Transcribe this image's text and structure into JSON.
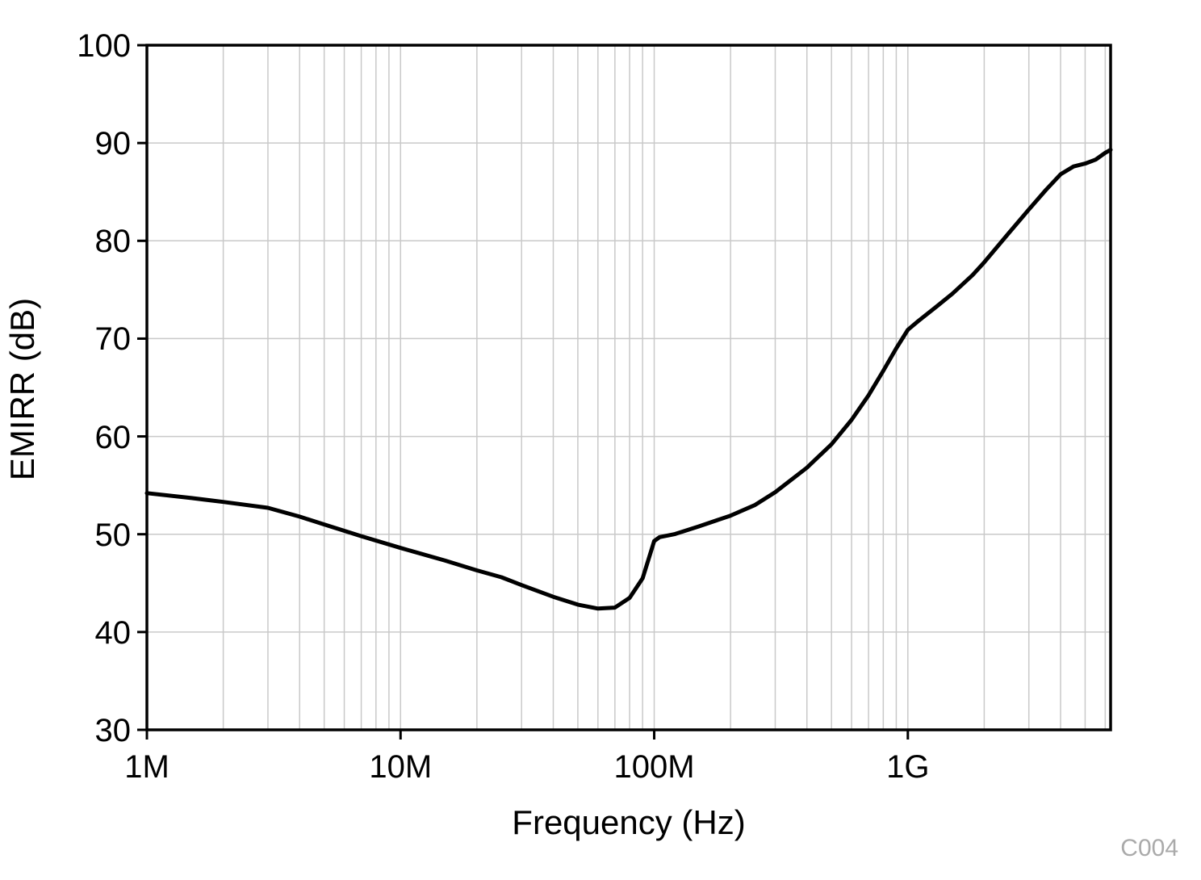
{
  "chart_data": {
    "type": "line",
    "title": "",
    "xlabel": "Frequency (Hz)",
    "ylabel": "EMIRR (dB)",
    "watermark": "C004",
    "x_scale": "log",
    "x_range": [
      1000000,
      6300000000
    ],
    "y_range": [
      30,
      100
    ],
    "x_ticks": [
      {
        "value": 1000000,
        "label": "1M"
      },
      {
        "value": 10000000,
        "label": "10M"
      },
      {
        "value": 100000000,
        "label": "100M"
      },
      {
        "value": 1000000000,
        "label": "1G"
      }
    ],
    "y_ticks": [
      {
        "value": 30,
        "label": "30"
      },
      {
        "value": 40,
        "label": "40"
      },
      {
        "value": 50,
        "label": "50"
      },
      {
        "value": 60,
        "label": "60"
      },
      {
        "value": 70,
        "label": "70"
      },
      {
        "value": 80,
        "label": "80"
      },
      {
        "value": 90,
        "label": "90"
      },
      {
        "value": 100,
        "label": "100"
      }
    ],
    "grid": {
      "on": true,
      "color": "#c9c9c9",
      "minor_log_x": true
    },
    "line_color": "#000000",
    "series": [
      {
        "name": "EMIRR",
        "points": [
          [
            1000000,
            54.2
          ],
          [
            1500000,
            53.7
          ],
          [
            2000000,
            53.3
          ],
          [
            3000000,
            52.7
          ],
          [
            4000000,
            51.8
          ],
          [
            5000000,
            51.0
          ],
          [
            7000000,
            49.8
          ],
          [
            10000000,
            48.6
          ],
          [
            15000000,
            47.3
          ],
          [
            20000000,
            46.3
          ],
          [
            25000000,
            45.6
          ],
          [
            30000000,
            44.8
          ],
          [
            40000000,
            43.6
          ],
          [
            50000000,
            42.8
          ],
          [
            60000000,
            42.4
          ],
          [
            70000000,
            42.5
          ],
          [
            80000000,
            43.5
          ],
          [
            90000000,
            45.5
          ],
          [
            100000000,
            49.3
          ],
          [
            105000000,
            49.7
          ],
          [
            120000000,
            50.0
          ],
          [
            150000000,
            50.8
          ],
          [
            200000000,
            51.9
          ],
          [
            250000000,
            53.0
          ],
          [
            300000000,
            54.3
          ],
          [
            400000000,
            56.8
          ],
          [
            500000000,
            59.2
          ],
          [
            600000000,
            61.7
          ],
          [
            700000000,
            64.2
          ],
          [
            800000000,
            66.7
          ],
          [
            900000000,
            69.0
          ],
          [
            1000000000,
            70.9
          ],
          [
            1100000000,
            71.8
          ],
          [
            1300000000,
            73.3
          ],
          [
            1500000000,
            74.6
          ],
          [
            1800000000,
            76.5
          ],
          [
            2000000000,
            77.8
          ],
          [
            2500000000,
            80.8
          ],
          [
            3000000000,
            83.2
          ],
          [
            3500000000,
            85.2
          ],
          [
            4000000000,
            86.8
          ],
          [
            4500000000,
            87.6
          ],
          [
            5000000000,
            87.9
          ],
          [
            5500000000,
            88.3
          ],
          [
            6000000000,
            89.0
          ],
          [
            6300000000,
            89.3
          ]
        ]
      }
    ]
  }
}
